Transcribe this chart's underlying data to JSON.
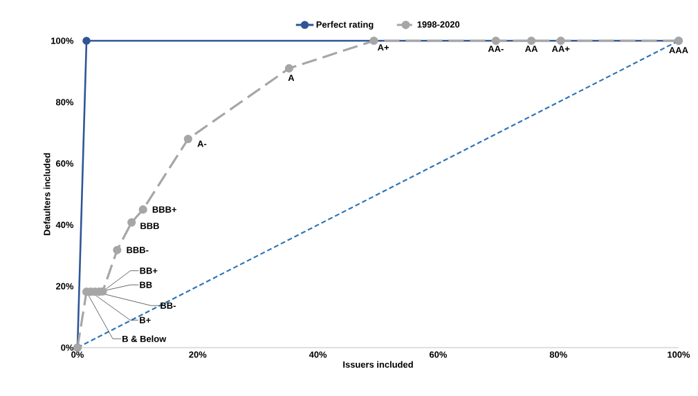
{
  "chart_data": {
    "type": "line",
    "xlabel": "Issuers included",
    "ylabel": "Defaulters included",
    "xlim": [
      0,
      100
    ],
    "ylim": [
      0,
      100
    ],
    "xticks": [
      {
        "value": 0,
        "label": "0%"
      },
      {
        "value": 20,
        "label": "20%"
      },
      {
        "value": 40,
        "label": "40%"
      },
      {
        "value": 60,
        "label": "60%"
      },
      {
        "value": 80,
        "label": "80%"
      },
      {
        "value": 100,
        "label": "100%"
      }
    ],
    "yticks": [
      {
        "value": 0,
        "label": "0%"
      },
      {
        "value": 20,
        "label": "20%"
      },
      {
        "value": 40,
        "label": "40%"
      },
      {
        "value": 60,
        "label": "60%"
      },
      {
        "value": 80,
        "label": "80%"
      },
      {
        "value": 100,
        "label": "100%"
      }
    ],
    "grid": false,
    "legend": "top",
    "series": [
      {
        "name": "Perfect rating",
        "color": "#2f5597",
        "marker": "circle",
        "line_style": "solid",
        "x": [
          0,
          1.5,
          100
        ],
        "values": [
          0,
          100,
          100
        ]
      },
      {
        "name": "1998-2020",
        "color": "#a6a6a6",
        "marker": "circle",
        "line_style": "dashed",
        "x": [
          0,
          1.5,
          2.2,
          2.9,
          3.6,
          4.2,
          6.6,
          9.0,
          10.9,
          18.4,
          35.2,
          49.3,
          69.6,
          75.5,
          80.4,
          100
        ],
        "values": [
          0,
          18.2,
          18.2,
          18.2,
          18.2,
          18.3,
          31.8,
          40.8,
          45.0,
          68.0,
          91.0,
          100,
          100,
          100,
          100,
          100
        ]
      },
      {
        "color": "#2e75b6",
        "marker": "none",
        "line_style": "dashed",
        "x": [
          0,
          100
        ],
        "values": [
          0,
          100
        ]
      }
    ],
    "annotations": [
      {
        "text": "B & Below",
        "x": 1.5,
        "y": 18.2
      },
      {
        "text": "B+",
        "x": 2.2,
        "y": 18.2
      },
      {
        "text": "BB-",
        "x": 2.9,
        "y": 18.2
      },
      {
        "text": "BB",
        "x": 3.6,
        "y": 18.2
      },
      {
        "text": "BB+",
        "x": 4.2,
        "y": 18.3
      },
      {
        "text": "BBB-",
        "x": 6.6,
        "y": 31.8
      },
      {
        "text": "BBB",
        "x": 9.0,
        "y": 40.8
      },
      {
        "text": "BBB+",
        "x": 10.9,
        "y": 45.0
      },
      {
        "text": "A-",
        "x": 18.4,
        "y": 68.0
      },
      {
        "text": "A",
        "x": 35.2,
        "y": 91.0
      },
      {
        "text": "A+",
        "x": 49.3,
        "y": 100
      },
      {
        "text": "AA-",
        "x": 69.6,
        "y": 100
      },
      {
        "text": "AA",
        "x": 75.5,
        "y": 100
      },
      {
        "text": "AA+",
        "x": 80.4,
        "y": 100
      },
      {
        "text": "AAA",
        "x": 100,
        "y": 100
      }
    ]
  }
}
